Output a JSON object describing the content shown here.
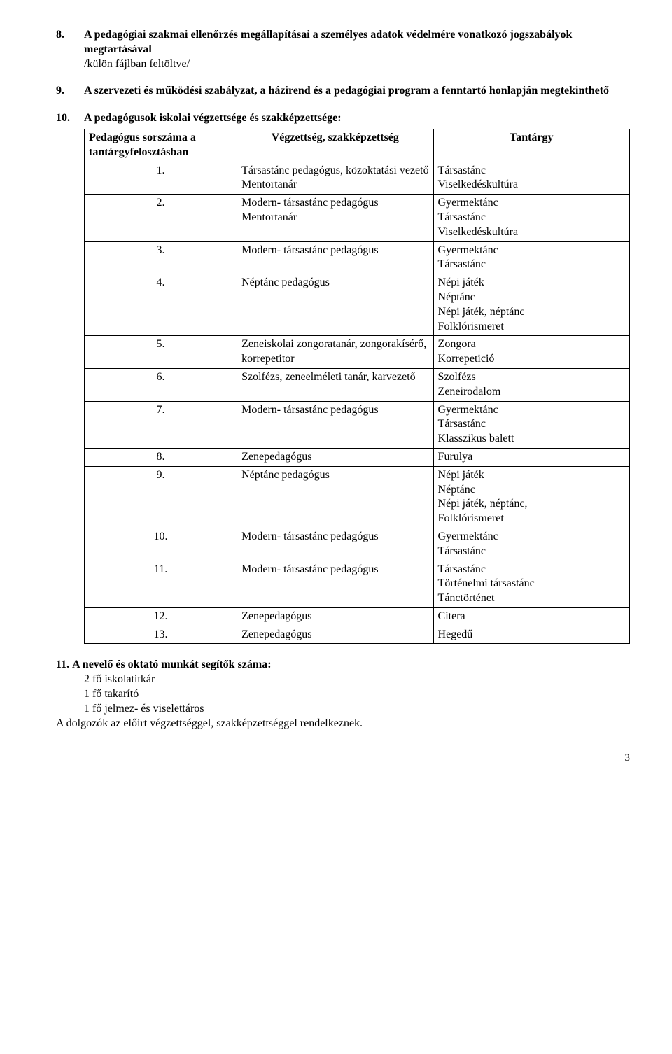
{
  "sections": {
    "s8": {
      "num": "8.",
      "title": "A pedagógiai szakmai ellenőrzés megállapításai a személyes adatok védelmére vonatkozó jogszabályok megtartásával",
      "sub": "/külön fájlban feltöltve/"
    },
    "s9": {
      "num": "9.",
      "title": "A szervezeti és működési szabályzat, a házirend és a pedagógiai program a fenntartó honlapján megtekinthető"
    },
    "s10": {
      "num": "10.",
      "title": "A pedagógusok iskolai végzettsége és szakképzettsége:"
    }
  },
  "table": {
    "headers": {
      "c1": "Pedagógus sorszáma a tantárgyfelosztásban",
      "c2": "Végzettség, szakképzettség",
      "c3": "Tantárgy"
    },
    "rows": [
      {
        "n": "1.",
        "q": "Társastánc pedagógus, közoktatási vezető\nMentortanár",
        "s": "Társastánc\nViselkedéskultúra"
      },
      {
        "n": "2.",
        "q": "Modern- társastánc pedagógus\nMentortanár",
        "s": "Gyermektánc\nTársastánc\nViselkedéskultúra"
      },
      {
        "n": "3.",
        "q": "Modern- társastánc pedagógus",
        "s": "Gyermektánc\nTársastánc"
      },
      {
        "n": "4.",
        "q": "Néptánc pedagógus",
        "s": "Népi játék\nNéptánc\nNépi játék, néptánc\nFolklórismeret"
      },
      {
        "n": "5.",
        "q": "Zeneiskolai zongoratanár, zongorakísérő, korrepetitor",
        "s": "Zongora\nKorrepetició"
      },
      {
        "n": "6.",
        "q": "Szolfézs, zeneelméleti tanár, karvezető",
        "s": "Szolfézs\nZeneirodalom"
      },
      {
        "n": "7.",
        "q": "Modern- társastánc pedagógus",
        "s": "Gyermektánc\nTársastánc\nKlasszikus balett"
      },
      {
        "n": "8.",
        "q": "Zenepedagógus",
        "s": "Furulya"
      },
      {
        "n": "9.",
        "q": "Néptánc pedagógus",
        "s": "Népi játék\nNéptánc\nNépi játék, néptánc,\nFolklórismeret"
      },
      {
        "n": "10.",
        "q": "Modern- társastánc pedagógus",
        "s": "Gyermektánc\nTársastánc"
      },
      {
        "n": "11.",
        "q": "Modern- társastánc pedagógus",
        "s": "Társastánc\nTörténelmi társastánc\nTánctörténet"
      },
      {
        "n": "12.",
        "q": "Zenepedagógus",
        "s": "Citera"
      },
      {
        "n": "13.",
        "q": "Zenepedagógus",
        "s": "Hegedű"
      }
    ]
  },
  "bottom": {
    "num": "11.",
    "title": "A nevelő és oktató munkát segítők száma:",
    "lines": [
      "2  fő iskolatitkár",
      "1 fő takarító",
      "1 fő jelmez- és viselettáros"
    ],
    "closing": "A dolgozók az előírt végzettséggel, szakképzettséggel rendelkeznek."
  },
  "page_number": "3"
}
